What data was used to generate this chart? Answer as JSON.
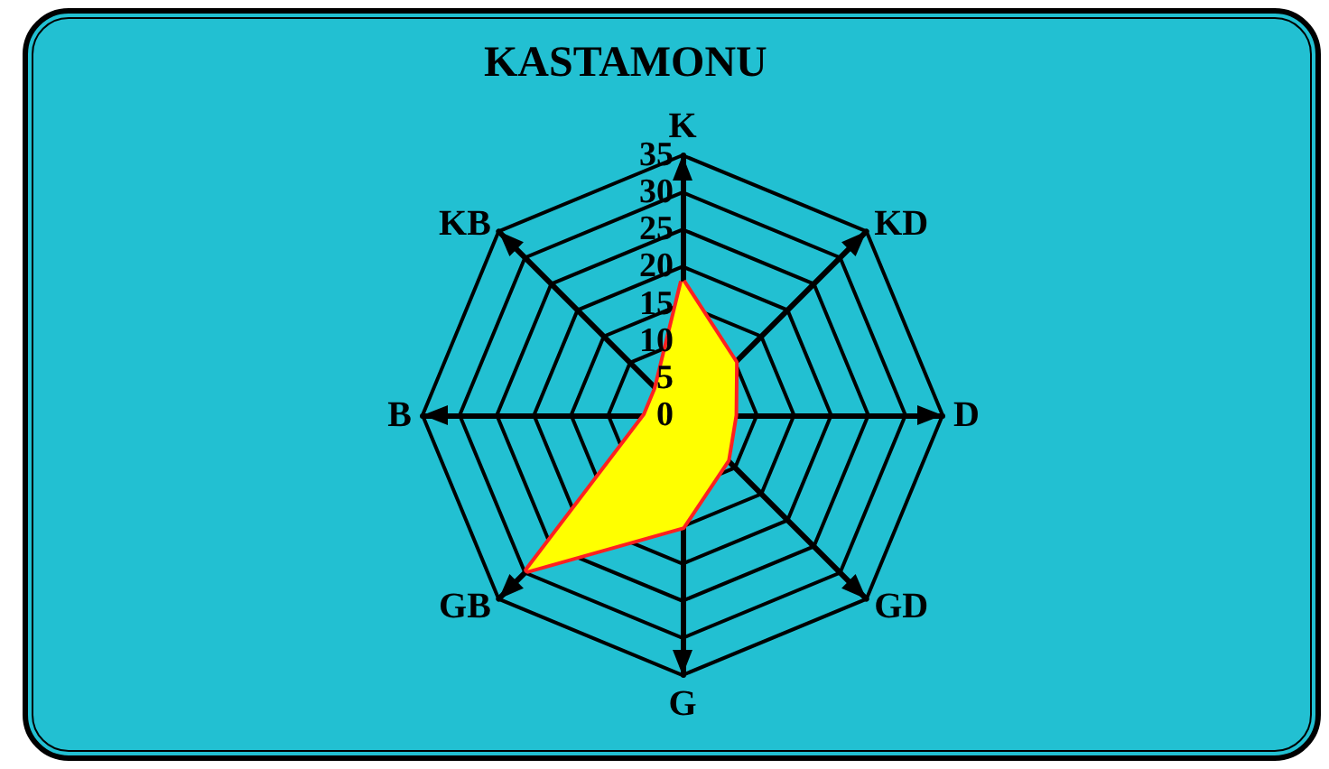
{
  "chart_data": {
    "type": "radar",
    "title": "KASTAMONU",
    "categories": [
      "K",
      "KD",
      "D",
      "GD",
      "G",
      "GB",
      "B",
      "KB"
    ],
    "series": [
      {
        "color": "#ff2020",
        "values": [
          18,
          10,
          7,
          8.5,
          15,
          29.5,
          5,
          5
        ]
      }
    ],
    "ylim": [
      0,
      35
    ],
    "yticks": [
      0,
      5,
      10,
      15,
      20,
      25,
      30,
      35
    ],
    "grid": true,
    "marker": "none"
  }
}
